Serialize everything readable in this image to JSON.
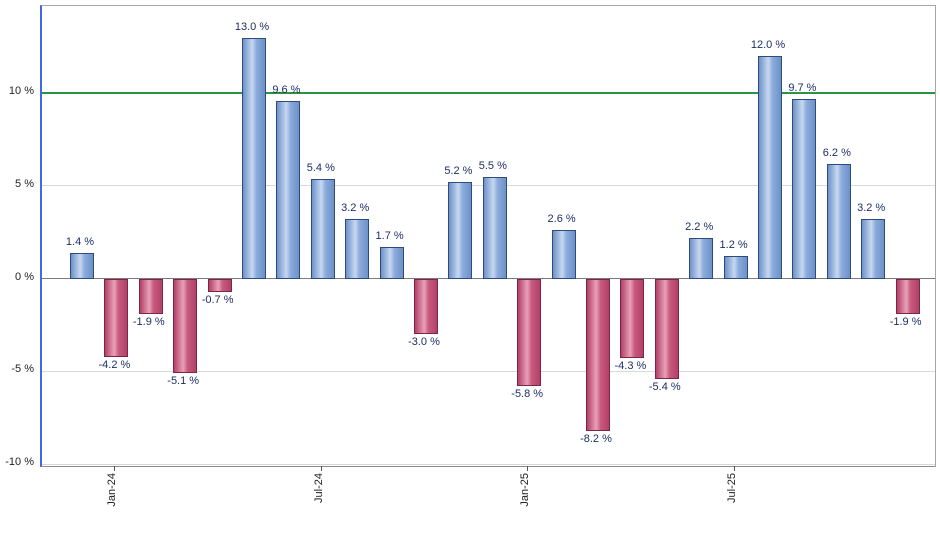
{
  "chart_data": {
    "type": "bar",
    "title": "",
    "xlabel": "",
    "ylabel": "",
    "ylim": [
      -10.1,
      14.7
    ],
    "grid": "horizontal",
    "legend": "none",
    "values": [
      1.4,
      -4.2,
      -1.9,
      -5.1,
      -0.7,
      13.0,
      9.6,
      5.4,
      3.2,
      1.7,
      -3.0,
      5.2,
      5.5,
      -5.8,
      2.6,
      -8.2,
      -4.3,
      -5.4,
      2.2,
      1.2,
      12.0,
      9.7,
      6.2,
      3.2,
      -1.9
    ],
    "bar_labels": [
      "1.4 %",
      "-4.2 %",
      "-1.9 %",
      "-5.1 %",
      "-0.7 %",
      "13.0 %",
      "9.6 %",
      "5.4 %",
      "3.2 %",
      "1.7 %",
      "-3.0 %",
      "5.2 %",
      "5.5 %",
      "-5.8 %",
      "2.6 %",
      "-8.2 %",
      "-4.3 %",
      "-5.4 %",
      "2.2 %",
      "1.2 %",
      "12.0 %",
      "9.7 %",
      "6.2 %",
      "3.2 %",
      "-1.9 %"
    ],
    "y_ticks": [
      {
        "value": 10,
        "label": "10 %"
      },
      {
        "value": 5,
        "label": "5 %"
      },
      {
        "value": 0,
        "label": "0 %"
      },
      {
        "value": -5,
        "label": "-5 %"
      },
      {
        "value": -10,
        "label": "-10 %"
      }
    ],
    "x_ticks": [
      {
        "bar_index": 1,
        "label": "Jan-24"
      },
      {
        "bar_index": 7,
        "label": "Jul-24"
      },
      {
        "bar_index": 13,
        "label": "Jan-25"
      },
      {
        "bar_index": 19,
        "label": "Jul-25"
      }
    ],
    "reference_line": {
      "value": 10,
      "color": "#2e9244"
    },
    "colors": {
      "positive_fill": "#8fb0e0",
      "positive_border": "#2f4a7d",
      "negative_fill": "#c9537a",
      "negative_border": "#7c2644",
      "reference_line": "#2e9244",
      "left_axis": "#4169e1",
      "grid": "#d9d9d9",
      "zero_line": "#7a7a7a",
      "value_label_text": "#1c2e66"
    }
  }
}
